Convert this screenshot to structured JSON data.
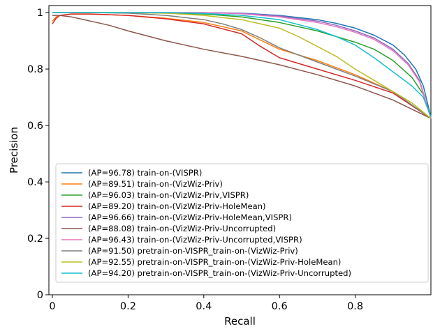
{
  "chart_data": {
    "type": "line",
    "title": "",
    "xlabel": "Recall",
    "ylabel": "Precision",
    "xlim": [
      0,
      1
    ],
    "ylim": [
      0,
      1.02
    ],
    "xticks": [
      0,
      0.2,
      0.4,
      0.6,
      0.8
    ],
    "xtick_labels": [
      "0",
      "0.2",
      "0.4",
      "0.6",
      "0.8"
    ],
    "yticks": [
      0,
      0.2,
      0.4,
      0.6,
      0.8,
      1
    ],
    "ytick_labels": [
      "0",
      "0.2",
      "0.4",
      "0.6",
      "0.8",
      "1"
    ],
    "grid": false,
    "legend_position": "lower-left",
    "series": [
      {
        "name": "(AP=96.78) train-on-(VISPR)",
        "color": "#1f77b4",
        "x": [
          0,
          0.02,
          0.05,
          0.1,
          0.2,
          0.3,
          0.4,
          0.5,
          0.6,
          0.7,
          0.75,
          0.8,
          0.85,
          0.9,
          0.93,
          0.96,
          0.98,
          1.0
        ],
        "y": [
          1.0,
          1.0,
          1.0,
          1.0,
          1.0,
          1.0,
          1.0,
          0.998,
          0.99,
          0.975,
          0.962,
          0.945,
          0.92,
          0.885,
          0.85,
          0.8,
          0.74,
          0.63
        ]
      },
      {
        "name": "(AP=89.51) train-on-(VizWiz-Priv)",
        "color": "#ff7f0e",
        "x": [
          0,
          0.01,
          0.02,
          0.05,
          0.1,
          0.2,
          0.3,
          0.4,
          0.5,
          0.6,
          0.7,
          0.8,
          0.9,
          1.0
        ],
        "y": [
          0.97,
          0.985,
          0.99,
          0.995,
          0.995,
          0.99,
          0.98,
          0.965,
          0.935,
          0.87,
          0.83,
          0.78,
          0.72,
          0.625
        ]
      },
      {
        "name": "(AP=96.03) train-on-(VizWiz-Priv,VISPR)",
        "color": "#2ca02c",
        "x": [
          0,
          0.02,
          0.05,
          0.1,
          0.2,
          0.3,
          0.4,
          0.5,
          0.6,
          0.7,
          0.8,
          0.85,
          0.9,
          0.95,
          0.98,
          1.0
        ],
        "y": [
          1.0,
          1.0,
          1.0,
          1.0,
          1.0,
          0.998,
          0.995,
          0.985,
          0.965,
          0.935,
          0.895,
          0.87,
          0.83,
          0.77,
          0.71,
          0.63
        ]
      },
      {
        "name": "(AP=89.20) train-on-(VizWiz-Priv-HoleMean)",
        "color": "#d62728",
        "x": [
          0,
          0.01,
          0.02,
          0.05,
          0.1,
          0.2,
          0.3,
          0.4,
          0.5,
          0.55,
          0.6,
          0.7,
          0.8,
          0.9,
          1.0
        ],
        "y": [
          0.96,
          0.98,
          0.99,
          0.995,
          0.995,
          0.99,
          0.978,
          0.96,
          0.925,
          0.88,
          0.84,
          0.8,
          0.76,
          0.715,
          0.625
        ]
      },
      {
        "name": "(AP=96.66) train-on-(VizWiz-Priv-HoleMean,VISPR)",
        "color": "#9467bd",
        "x": [
          0,
          0.05,
          0.1,
          0.2,
          0.3,
          0.4,
          0.5,
          0.6,
          0.7,
          0.75,
          0.8,
          0.85,
          0.9,
          0.94,
          0.97,
          1.0
        ],
        "y": [
          1.0,
          1.0,
          1.0,
          1.0,
          1.0,
          1.0,
          0.997,
          0.988,
          0.97,
          0.955,
          0.935,
          0.91,
          0.87,
          0.82,
          0.76,
          0.625
        ]
      },
      {
        "name": "(AP=88.08) train-on-(VizWiz-Priv-Uncorrupted)",
        "color": "#8c564b",
        "x": [
          0,
          0.02,
          0.05,
          0.1,
          0.15,
          0.2,
          0.3,
          0.4,
          0.5,
          0.6,
          0.7,
          0.8,
          0.9,
          1.0
        ],
        "y": [
          0.99,
          0.99,
          0.985,
          0.97,
          0.955,
          0.935,
          0.9,
          0.87,
          0.845,
          0.815,
          0.78,
          0.74,
          0.69,
          0.625
        ]
      },
      {
        "name": "(AP=96.43) train-on-(VizWiz-Priv-Uncorrupted,VISPR)",
        "color": "#e377c2",
        "x": [
          0,
          0.05,
          0.1,
          0.2,
          0.3,
          0.4,
          0.5,
          0.6,
          0.7,
          0.75,
          0.8,
          0.85,
          0.9,
          0.94,
          0.97,
          1.0
        ],
        "y": [
          1.0,
          1.0,
          1.0,
          1.0,
          1.0,
          1.0,
          0.996,
          0.985,
          0.965,
          0.95,
          0.93,
          0.905,
          0.865,
          0.815,
          0.755,
          0.625
        ]
      },
      {
        "name": "(AP=91.50) pretrain-on-VISPR_train-on-(VizWiz-Priv)",
        "color": "#7f7f7f",
        "x": [
          0,
          0.05,
          0.1,
          0.2,
          0.3,
          0.4,
          0.45,
          0.5,
          0.55,
          0.6,
          0.7,
          0.8,
          0.9,
          1.0
        ],
        "y": [
          1.0,
          1.0,
          1.0,
          0.998,
          0.99,
          0.975,
          0.96,
          0.94,
          0.91,
          0.875,
          0.825,
          0.775,
          0.72,
          0.625
        ]
      },
      {
        "name": "(AP=92.55) pretrain-on-VISPR_train-on-(VizWiz-Priv-HoleMean)",
        "color": "#bcbd22",
        "x": [
          0,
          0.05,
          0.1,
          0.2,
          0.3,
          0.4,
          0.5,
          0.6,
          0.65,
          0.7,
          0.75,
          0.8,
          0.85,
          0.9,
          0.95,
          1.0
        ],
        "y": [
          1.0,
          1.0,
          1.0,
          1.0,
          0.998,
          0.99,
          0.975,
          0.945,
          0.915,
          0.88,
          0.845,
          0.8,
          0.76,
          0.72,
          0.68,
          0.625
        ]
      },
      {
        "name": "(AP=94.20) pretrain-on-VISPR_train-on-(VizWiz-Priv-Uncorrupted)",
        "color": "#17becf",
        "x": [
          0,
          0.05,
          0.1,
          0.2,
          0.3,
          0.4,
          0.5,
          0.6,
          0.7,
          0.75,
          0.8,
          0.85,
          0.9,
          0.95,
          0.98,
          1.0
        ],
        "y": [
          1.0,
          1.0,
          1.0,
          1.0,
          1.0,
          0.997,
          0.99,
          0.975,
          0.94,
          0.915,
          0.885,
          0.84,
          0.79,
          0.74,
          0.7,
          0.63
        ]
      }
    ]
  }
}
